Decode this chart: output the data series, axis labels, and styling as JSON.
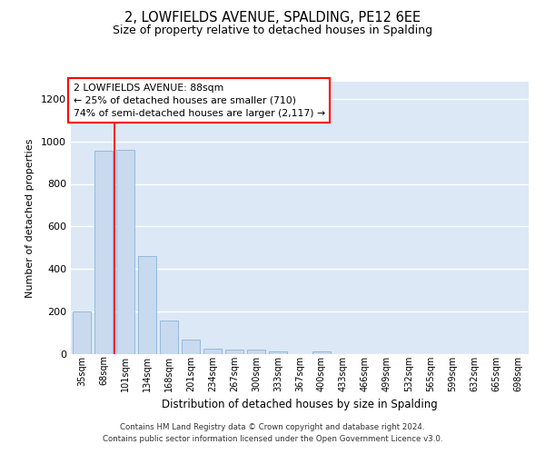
{
  "title_line1": "2, LOWFIELDS AVENUE, SPALDING, PE12 6EE",
  "title_line2": "Size of property relative to detached houses in Spalding",
  "xlabel": "Distribution of detached houses by size in Spalding",
  "ylabel": "Number of detached properties",
  "categories": [
    "35sqm",
    "68sqm",
    "101sqm",
    "134sqm",
    "168sqm",
    "201sqm",
    "234sqm",
    "267sqm",
    "300sqm",
    "333sqm",
    "367sqm",
    "400sqm",
    "433sqm",
    "466sqm",
    "499sqm",
    "532sqm",
    "565sqm",
    "599sqm",
    "632sqm",
    "665sqm",
    "698sqm"
  ],
  "values": [
    200,
    955,
    960,
    462,
    160,
    70,
    27,
    22,
    20,
    12,
    0,
    12,
    0,
    0,
    0,
    0,
    0,
    0,
    0,
    0,
    0
  ],
  "bar_fill_color": "#c9d9ee",
  "bar_edge_color": "#8ab4d8",
  "red_line_x": 1.5,
  "ylim": [
    0,
    1280
  ],
  "yticks": [
    0,
    200,
    400,
    600,
    800,
    1000,
    1200
  ],
  "annotation_text": "2 LOWFIELDS AVENUE: 88sqm\n← 25% of detached houses are smaller (710)\n74% of semi-detached houses are larger (2,117) →",
  "background_color": "#dce8f5",
  "grid_color": "#ffffff",
  "footer_line1": "Contains HM Land Registry data © Crown copyright and database right 2024.",
  "footer_line2": "Contains public sector information licensed under the Open Government Licence v3.0."
}
